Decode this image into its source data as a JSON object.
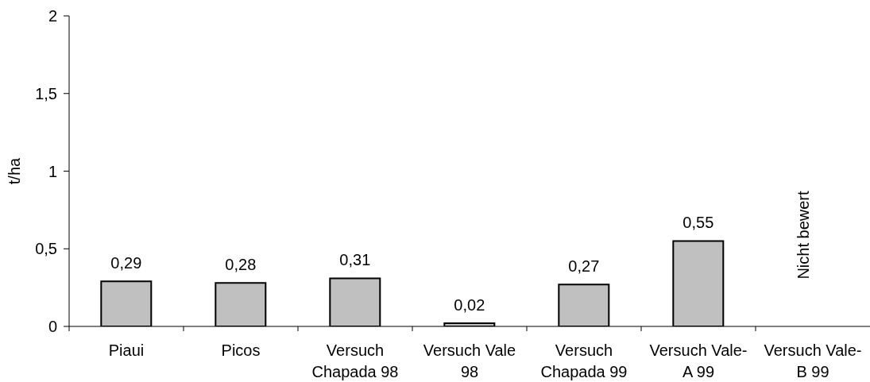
{
  "chart_data": {
    "type": "bar",
    "ylabel": "t/ha",
    "categories": [
      "Piaui",
      "Picos",
      "Versuch Chapada 98",
      "Versuch Vale 98",
      "Versuch Chapada 99",
      "Versuch Vale-A 99",
      "Versuch Vale-B 99"
    ],
    "values": [
      0.29,
      0.28,
      0.31,
      0.02,
      0.27,
      0.55,
      null
    ],
    "value_labels": [
      "0,29",
      "0,28",
      "0,31",
      "0,02",
      "0,27",
      "0,55",
      null
    ],
    "color": "#c0c0c0",
    "ylim": [
      0,
      2
    ],
    "yticks": [
      0,
      {
        "value": 0.5,
        "label": "0,5"
      },
      1,
      {
        "value": 1.5,
        "label": "1,5"
      },
      2
    ],
    "annotations": [
      "Nicht bewert"
    ]
  }
}
